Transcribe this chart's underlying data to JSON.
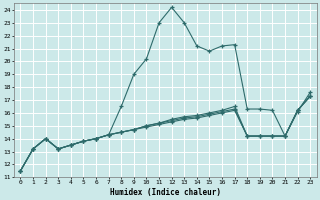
{
  "xlabel": "Humidex (Indice chaleur)",
  "xlim": [
    -0.5,
    23.5
  ],
  "ylim": [
    11,
    24.5
  ],
  "yticks": [
    11,
    12,
    13,
    14,
    15,
    16,
    17,
    18,
    19,
    20,
    21,
    22,
    23,
    24
  ],
  "xticks": [
    0,
    1,
    2,
    3,
    4,
    5,
    6,
    7,
    8,
    9,
    10,
    11,
    12,
    13,
    14,
    15,
    16,
    17,
    18,
    19,
    20,
    21,
    22,
    23
  ],
  "bg_color": "#cce9e9",
  "grid_color": "#ffffff",
  "line_color": "#2e6b6b",
  "lines": [
    {
      "x": [
        0,
        1,
        2,
        3,
        4,
        5,
        6,
        7,
        8,
        9,
        10,
        11,
        12,
        13,
        14,
        15,
        16,
        17,
        18,
        19,
        20,
        21,
        22,
        23
      ],
      "y": [
        11.5,
        13.2,
        14.0,
        13.2,
        13.5,
        13.8,
        14.0,
        14.3,
        16.5,
        19.0,
        20.2,
        23.0,
        24.2,
        23.0,
        21.2,
        20.8,
        21.2,
        21.3,
        16.3,
        16.3,
        16.2,
        14.2,
        16.2,
        17.3
      ]
    },
    {
      "x": [
        0,
        1,
        2,
        3,
        4,
        5,
        6,
        7,
        8,
        9,
        10,
        11,
        12,
        13,
        14,
        15,
        16,
        17,
        18,
        19,
        20,
        21,
        22,
        23
      ],
      "y": [
        11.5,
        13.2,
        14.0,
        13.2,
        13.5,
        13.8,
        14.0,
        14.3,
        14.5,
        14.7,
        14.9,
        15.1,
        15.3,
        15.5,
        15.6,
        15.8,
        16.0,
        16.2,
        14.2,
        14.2,
        14.2,
        14.2,
        16.2,
        17.3
      ]
    },
    {
      "x": [
        0,
        1,
        2,
        3,
        4,
        5,
        6,
        7,
        8,
        9,
        10,
        11,
        12,
        13,
        14,
        15,
        16,
        17,
        18,
        19,
        20,
        21,
        22,
        23
      ],
      "y": [
        11.5,
        13.2,
        14.0,
        13.2,
        13.5,
        13.8,
        14.0,
        14.3,
        14.5,
        14.7,
        15.0,
        15.2,
        15.4,
        15.6,
        15.7,
        15.9,
        16.1,
        16.3,
        14.2,
        14.2,
        14.2,
        14.2,
        16.1,
        17.6
      ]
    },
    {
      "x": [
        0,
        1,
        2,
        3,
        4,
        5,
        6,
        7,
        8,
        9,
        10,
        11,
        12,
        13,
        14,
        15,
        16,
        17,
        18,
        19,
        20,
        21,
        22,
        23
      ],
      "y": [
        11.5,
        13.2,
        14.0,
        13.2,
        13.5,
        13.8,
        14.0,
        14.3,
        14.5,
        14.7,
        15.0,
        15.2,
        15.5,
        15.7,
        15.8,
        16.0,
        16.2,
        16.5,
        14.2,
        14.2,
        14.2,
        14.2,
        16.2,
        17.3
      ]
    }
  ]
}
